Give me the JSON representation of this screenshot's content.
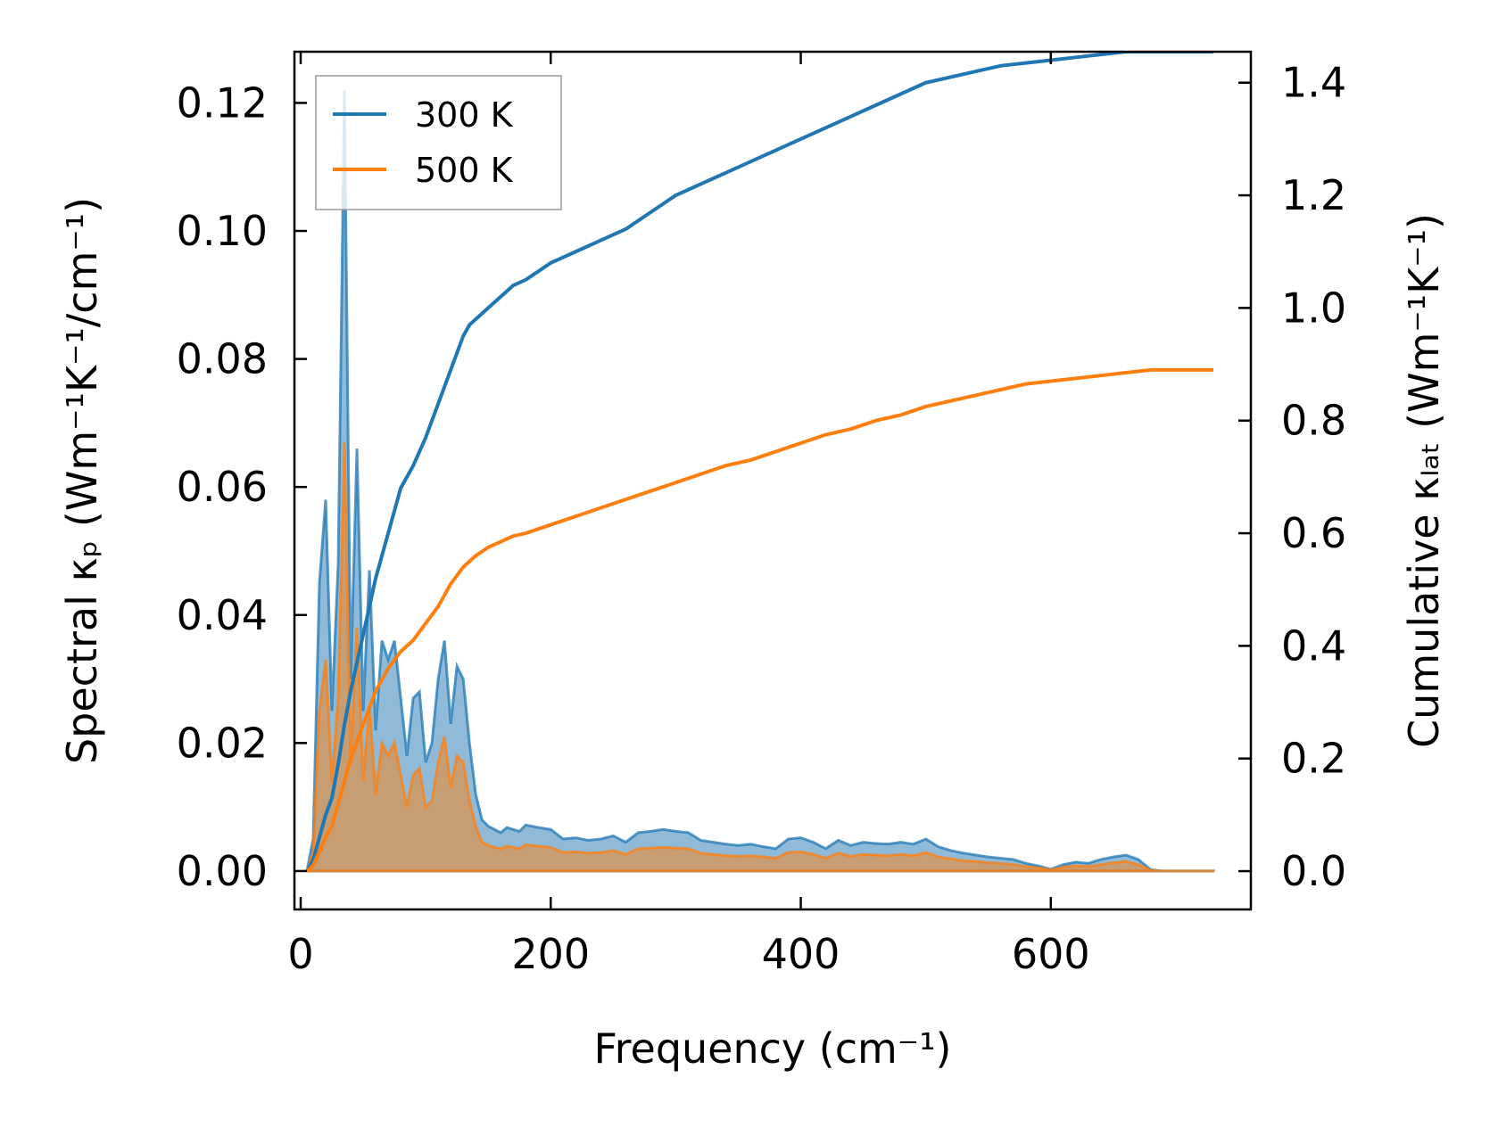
{
  "chart_data": {
    "type": "area",
    "xlabel": "Frequency (cm⁻¹)",
    "ylabel_left": "Spectral κₚ (Wm⁻¹K⁻¹/cm⁻¹)",
    "ylabel_right": "Cumulative κₗₐₜ (Wm⁻¹K⁻¹)",
    "xlim": [
      -5,
      760
    ],
    "ylim_left": [
      -0.006,
      0.128
    ],
    "ylim_right": [
      -0.068,
      1.455
    ],
    "xticks": [
      0,
      200,
      400,
      600
    ],
    "yticks_left": [
      "0.00",
      "0.02",
      "0.04",
      "0.06",
      "0.08",
      "0.10",
      "0.12"
    ],
    "yticks_right": [
      "0.0",
      "0.2",
      "0.4",
      "0.6",
      "0.8",
      "1.0",
      "1.2",
      "1.4"
    ],
    "legend": {
      "position": "top-left"
    },
    "series": [
      {
        "name": "300 K",
        "color": "#1f77b4",
        "spectral": {
          "x": [
            5,
            10,
            15,
            20,
            25,
            30,
            35,
            40,
            45,
            50,
            55,
            60,
            65,
            70,
            75,
            80,
            85,
            90,
            95,
            100,
            105,
            110,
            115,
            120,
            125,
            130,
            135,
            140,
            145,
            150,
            155,
            160,
            165,
            170,
            175,
            180,
            185,
            190,
            200,
            210,
            220,
            230,
            240,
            250,
            260,
            270,
            280,
            290,
            300,
            310,
            320,
            330,
            340,
            350,
            360,
            370,
            380,
            390,
            400,
            410,
            420,
            430,
            440,
            450,
            460,
            470,
            480,
            490,
            500,
            510,
            520,
            530,
            540,
            550,
            560,
            570,
            580,
            590,
            600,
            610,
            620,
            630,
            640,
            650,
            660,
            670,
            680,
            690,
            700,
            710,
            720,
            730
          ],
          "y": [
            0,
            0.005,
            0.045,
            0.058,
            0.025,
            0.048,
            0.122,
            0.03,
            0.066,
            0.025,
            0.047,
            0.022,
            0.036,
            0.033,
            0.036,
            0.027,
            0.018,
            0.027,
            0.028,
            0.017,
            0.02,
            0.03,
            0.036,
            0.023,
            0.032,
            0.03,
            0.02,
            0.012,
            0.008,
            0.007,
            0.0065,
            0.006,
            0.0068,
            0.0065,
            0.0062,
            0.0072,
            0.007,
            0.0068,
            0.0065,
            0.005,
            0.0052,
            0.0048,
            0.005,
            0.0055,
            0.0045,
            0.006,
            0.0062,
            0.0065,
            0.0062,
            0.006,
            0.0048,
            0.0045,
            0.0042,
            0.004,
            0.0042,
            0.0038,
            0.0035,
            0.005,
            0.0052,
            0.0045,
            0.0035,
            0.0048,
            0.004,
            0.0045,
            0.0043,
            0.0042,
            0.0045,
            0.0042,
            0.005,
            0.0038,
            0.0032,
            0.0028,
            0.0025,
            0.0022,
            0.002,
            0.0018,
            0.0012,
            0.0008,
            0.0003,
            0.001,
            0.0014,
            0.0012,
            0.0018,
            0.0022,
            0.0025,
            0.0018,
            0.0002,
            0,
            0,
            0,
            0,
            0
          ]
        },
        "cumulative": {
          "x": [
            5,
            10,
            15,
            20,
            25,
            30,
            35,
            40,
            45,
            50,
            55,
            60,
            65,
            70,
            75,
            80,
            90,
            100,
            110,
            115,
            120,
            125,
            130,
            135,
            140,
            150,
            160,
            170,
            180,
            200,
            220,
            240,
            260,
            280,
            300,
            320,
            340,
            360,
            380,
            400,
            420,
            440,
            460,
            480,
            500,
            520,
            540,
            560,
            580,
            600,
            620,
            640,
            660,
            680,
            700,
            730
          ],
          "y": [
            0,
            0.02,
            0.06,
            0.1,
            0.13,
            0.19,
            0.26,
            0.32,
            0.37,
            0.42,
            0.47,
            0.52,
            0.56,
            0.6,
            0.64,
            0.68,
            0.72,
            0.77,
            0.83,
            0.86,
            0.89,
            0.92,
            0.95,
            0.97,
            0.98,
            1.0,
            1.02,
            1.04,
            1.05,
            1.08,
            1.1,
            1.12,
            1.14,
            1.17,
            1.2,
            1.22,
            1.24,
            1.26,
            1.28,
            1.3,
            1.32,
            1.34,
            1.36,
            1.38,
            1.4,
            1.41,
            1.42,
            1.43,
            1.435,
            1.44,
            1.445,
            1.45,
            1.455,
            1.455,
            1.455,
            1.455
          ]
        }
      },
      {
        "name": "500 K",
        "color": "#ff7f0e",
        "spectral": {
          "x": [
            5,
            10,
            15,
            20,
            25,
            30,
            35,
            40,
            45,
            50,
            55,
            60,
            65,
            70,
            75,
            80,
            85,
            90,
            95,
            100,
            105,
            110,
            115,
            120,
            125,
            130,
            135,
            140,
            145,
            150,
            155,
            160,
            165,
            170,
            175,
            180,
            185,
            190,
            200,
            210,
            220,
            230,
            240,
            250,
            260,
            270,
            280,
            290,
            300,
            310,
            320,
            330,
            340,
            350,
            360,
            370,
            380,
            390,
            400,
            410,
            420,
            430,
            440,
            450,
            460,
            470,
            480,
            490,
            500,
            510,
            520,
            530,
            540,
            550,
            560,
            570,
            580,
            590,
            600,
            610,
            620,
            630,
            640,
            650,
            660,
            670,
            680,
            690,
            700,
            710,
            720,
            730
          ],
          "y": [
            0,
            0.003,
            0.025,
            0.033,
            0.014,
            0.027,
            0.067,
            0.017,
            0.038,
            0.014,
            0.026,
            0.012,
            0.02,
            0.018,
            0.02,
            0.015,
            0.01,
            0.015,
            0.016,
            0.01,
            0.011,
            0.017,
            0.021,
            0.013,
            0.018,
            0.017,
            0.011,
            0.007,
            0.0045,
            0.004,
            0.0037,
            0.0035,
            0.0039,
            0.0037,
            0.0035,
            0.0041,
            0.004,
            0.0039,
            0.0037,
            0.0029,
            0.003,
            0.0028,
            0.0029,
            0.0032,
            0.0026,
            0.0035,
            0.0036,
            0.0037,
            0.0036,
            0.0035,
            0.0028,
            0.0026,
            0.0024,
            0.0023,
            0.0024,
            0.0022,
            0.002,
            0.0029,
            0.003,
            0.0026,
            0.002,
            0.0028,
            0.0023,
            0.0026,
            0.0025,
            0.0024,
            0.0026,
            0.0024,
            0.0029,
            0.0022,
            0.0019,
            0.0016,
            0.0015,
            0.0013,
            0.0012,
            0.001,
            0.0007,
            0.0005,
            0.0002,
            0.0006,
            0.0008,
            0.0007,
            0.001,
            0.0013,
            0.0015,
            0.001,
            0.0001,
            0,
            0,
            0,
            0,
            0
          ]
        },
        "cumulative": {
          "x": [
            5,
            10,
            15,
            20,
            25,
            30,
            35,
            40,
            45,
            50,
            55,
            60,
            65,
            70,
            75,
            80,
            90,
            100,
            110,
            115,
            120,
            125,
            130,
            135,
            140,
            150,
            160,
            170,
            180,
            200,
            220,
            240,
            260,
            280,
            300,
            320,
            340,
            360,
            380,
            400,
            420,
            440,
            460,
            480,
            500,
            520,
            540,
            560,
            580,
            600,
            620,
            640,
            660,
            680,
            700,
            730
          ],
          "y": [
            0,
            0.01,
            0.035,
            0.06,
            0.08,
            0.12,
            0.16,
            0.2,
            0.23,
            0.26,
            0.29,
            0.32,
            0.34,
            0.36,
            0.375,
            0.39,
            0.41,
            0.44,
            0.47,
            0.49,
            0.51,
            0.525,
            0.54,
            0.55,
            0.56,
            0.575,
            0.585,
            0.595,
            0.6,
            0.615,
            0.63,
            0.645,
            0.66,
            0.675,
            0.69,
            0.705,
            0.72,
            0.73,
            0.745,
            0.76,
            0.775,
            0.785,
            0.8,
            0.81,
            0.825,
            0.835,
            0.845,
            0.855,
            0.865,
            0.87,
            0.875,
            0.88,
            0.885,
            0.89,
            0.89,
            0.89
          ]
        }
      }
    ]
  }
}
